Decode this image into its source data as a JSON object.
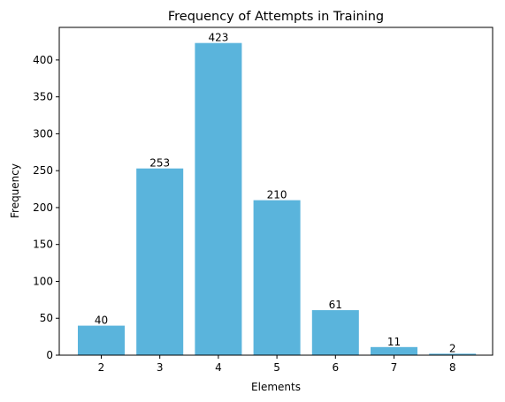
{
  "chart_data": {
    "type": "bar",
    "title": "Frequency of Attempts in Training",
    "xlabel": "Elements",
    "ylabel": "Frequency",
    "categories": [
      "2",
      "3",
      "4",
      "5",
      "6",
      "7",
      "8"
    ],
    "values": [
      40,
      253,
      423,
      210,
      61,
      11,
      2
    ],
    "data_labels": [
      "40",
      "253",
      "423",
      "210",
      "61",
      "11",
      "2"
    ],
    "yticks": [
      0,
      50,
      100,
      150,
      200,
      250,
      300,
      350,
      400
    ],
    "ytick_labels": [
      "0",
      "50",
      "100",
      "150",
      "200",
      "250",
      "300",
      "350",
      "400"
    ],
    "ylim": [
      0,
      444.15
    ],
    "grid": false,
    "legend": "none",
    "bar_color": "#5ab4dc"
  }
}
